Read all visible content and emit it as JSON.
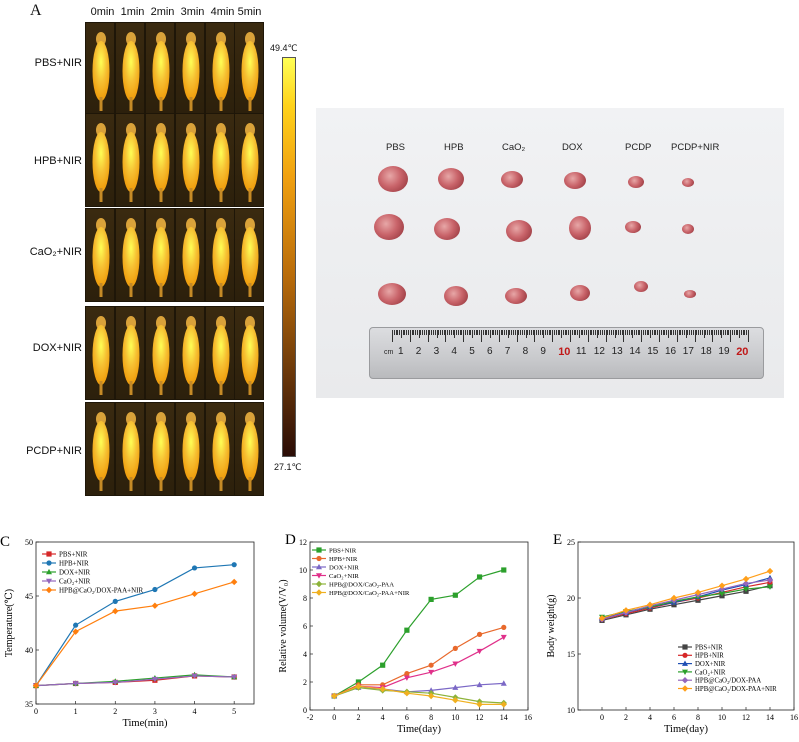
{
  "figure": {
    "panel_labels": [
      "A",
      "B",
      "C",
      "D",
      "E"
    ],
    "panel_a": {
      "time_headers": [
        "0min",
        "1min",
        "2min",
        "3min",
        "4min",
        "5min"
      ],
      "groups": [
        "PBS+NIR",
        "HPB+NIR",
        "CaO₂+NIR",
        "DOX+NIR",
        "PCDP+NIR"
      ],
      "colorbar_max": "49.4℃",
      "colorbar_min": "27.1℃",
      "colors": {
        "hot": "#ffff55",
        "mid": "#f0a010",
        "cold": "#2a0c06"
      }
    },
    "panel_b": {
      "groups": [
        "PBS",
        "HPB",
        "CaO₂",
        "DOX",
        "PCDP",
        "PCDP+NIR"
      ],
      "ruler_unit": "cm",
      "ruler_marks": [
        "1",
        "2",
        "3",
        "4",
        "5",
        "6",
        "7",
        "8",
        "9",
        "10",
        "11",
        "12",
        "13",
        "14",
        "15",
        "16",
        "17",
        "18",
        "19",
        "20"
      ]
    }
  },
  "chart_data": [
    {
      "id": "C",
      "type": "line",
      "title": "",
      "xlabel": "Time(min)",
      "ylabel": "Temperature(℃)",
      "xlim": [
        0,
        5.5
      ],
      "ylim": [
        35,
        50
      ],
      "xticks": [
        0,
        1,
        2,
        3,
        4,
        5
      ],
      "yticks": [
        35,
        40,
        45,
        50
      ],
      "x": [
        0,
        1,
        2,
        3,
        4,
        5
      ],
      "legend_position": "top-left",
      "series": [
        {
          "name": "PBS+NIR",
          "color": "#d62728",
          "marker": "square",
          "values": [
            36.7,
            36.9,
            37.0,
            37.2,
            37.6,
            37.5
          ]
        },
        {
          "name": "HPB+NIR",
          "color": "#1f77b4",
          "marker": "circle",
          "values": [
            36.7,
            42.3,
            44.5,
            45.6,
            47.6,
            47.9
          ]
        },
        {
          "name": "DOX+NIR",
          "color": "#2ca02c",
          "marker": "triangle",
          "values": [
            36.7,
            36.9,
            37.1,
            37.4,
            37.7,
            37.5
          ]
        },
        {
          "name": "CaO₂+NIR",
          "color": "#9467bd",
          "marker": "triangle-down",
          "values": [
            36.7,
            36.9,
            37.0,
            37.3,
            37.6,
            37.5
          ]
        },
        {
          "name": "HPB@CaO₂/DOX-PAA+NIR",
          "color": "#ff7f0e",
          "marker": "diamond",
          "values": [
            36.7,
            41.7,
            43.6,
            44.1,
            45.2,
            46.3
          ]
        }
      ]
    },
    {
      "id": "D",
      "type": "line",
      "title": "",
      "xlabel": "Time(day)",
      "ylabel": "Relative volume(V/V₀)",
      "xlim": [
        -2,
        16
      ],
      "ylim": [
        0,
        12
      ],
      "xticks": [
        -2,
        0,
        2,
        4,
        6,
        8,
        10,
        12,
        14,
        16
      ],
      "yticks": [
        0,
        2,
        4,
        6,
        8,
        10,
        12
      ],
      "x": [
        0,
        2,
        4,
        6,
        8,
        10,
        12,
        14
      ],
      "legend_position": "top-left",
      "series": [
        {
          "name": "PBS+NIR",
          "color": "#2ca02c",
          "marker": "square",
          "values": [
            1.0,
            2.0,
            3.2,
            5.7,
            7.9,
            8.2,
            9.5,
            10.0
          ]
        },
        {
          "name": "HPB+NIR",
          "color": "#e8692c",
          "marker": "circle",
          "values": [
            1.0,
            1.8,
            1.8,
            2.6,
            3.2,
            4.4,
            5.4,
            5.9
          ]
        },
        {
          "name": "DOX+NIR",
          "color": "#7b68c6",
          "marker": "triangle",
          "values": [
            1.0,
            1.6,
            1.5,
            1.3,
            1.4,
            1.6,
            1.8,
            1.9
          ]
        },
        {
          "name": "CaO₂+NIR",
          "color": "#e0308a",
          "marker": "triangle-down",
          "values": [
            1.0,
            1.7,
            1.6,
            2.3,
            2.7,
            3.3,
            4.2,
            5.2
          ]
        },
        {
          "name": "HPB@DOX/CaO₂-PAA",
          "color": "#8db33a",
          "marker": "diamond",
          "values": [
            1.0,
            1.6,
            1.4,
            1.3,
            1.2,
            0.9,
            0.6,
            0.5
          ]
        },
        {
          "name": "HPB@DOX/CaO₂-PAA+NIR",
          "color": "#f0b020",
          "marker": "diamond",
          "values": [
            1.0,
            1.7,
            1.5,
            1.2,
            1.0,
            0.7,
            0.4,
            0.4
          ]
        }
      ]
    },
    {
      "id": "E",
      "type": "line",
      "title": "",
      "xlabel": "Time(day)",
      "ylabel": "Body weight(g)",
      "xlim": [
        -2,
        16
      ],
      "ylim": [
        10,
        25
      ],
      "xticks": [
        0,
        2,
        4,
        6,
        8,
        10,
        12,
        14,
        16
      ],
      "yticks": [
        10,
        15,
        20,
        25
      ],
      "x": [
        0,
        2,
        4,
        6,
        8,
        10,
        12,
        14
      ],
      "legend_position": "bottom-right",
      "series": [
        {
          "name": "PBS+NIR",
          "color": "#444444",
          "marker": "square",
          "values": [
            18.0,
            18.5,
            19.0,
            19.4,
            19.8,
            20.2,
            20.6,
            21.1
          ]
        },
        {
          "name": "HPB+NIR",
          "color": "#d62728",
          "marker": "circle",
          "values": [
            18.1,
            18.6,
            19.1,
            19.6,
            20.0,
            20.5,
            21.0,
            21.4
          ]
        },
        {
          "name": "DOX+NIR",
          "color": "#1f4fb4",
          "marker": "triangle",
          "values": [
            18.2,
            18.7,
            19.2,
            19.6,
            20.1,
            20.7,
            21.2,
            21.8
          ]
        },
        {
          "name": "CaO₂+NIR",
          "color": "#2ca02c",
          "marker": "triangle-down",
          "values": [
            18.3,
            18.8,
            19.2,
            19.7,
            20.1,
            20.4,
            20.8,
            21.0
          ]
        },
        {
          "name": "HPB@CaO₂/DOX-PAA",
          "color": "#9467bd",
          "marker": "diamond",
          "values": [
            18.1,
            18.7,
            19.3,
            19.8,
            20.3,
            20.8,
            21.3,
            21.6
          ]
        },
        {
          "name": "HPB@CaO₂/DOX-PAA+NIR",
          "color": "#ff9f1a",
          "marker": "diamond",
          "values": [
            18.2,
            18.9,
            19.4,
            20.0,
            20.5,
            21.1,
            21.7,
            22.4
          ]
        }
      ]
    }
  ]
}
